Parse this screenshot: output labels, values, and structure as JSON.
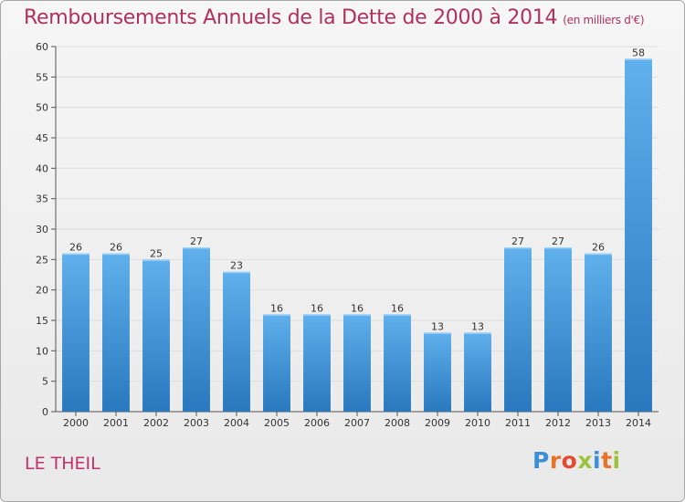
{
  "title": "Remboursements Annuels de la Dette de 2000 à 2014",
  "title_unit": "(en milliers d'€)",
  "commune": "LE THEIL",
  "logo": {
    "text": "Proxiti",
    "letter_colors": [
      "#3a8fd6",
      "#e8742a",
      "#e34a33",
      "#9bc43c",
      "#3a8fd6",
      "#e8742a",
      "#9bc43c"
    ]
  },
  "colors": {
    "bar": "#3d93db",
    "bar_light": "#5fb0ec",
    "bar_dark": "#2a78bd",
    "title": "#b0305e",
    "grid": "#dddddd"
  },
  "chart_data": {
    "type": "bar",
    "title": "Remboursements Annuels de la Dette de 2000 à 2014",
    "xlabel": "",
    "ylabel": "",
    "categories": [
      "2000",
      "2001",
      "2002",
      "2003",
      "2004",
      "2005",
      "2006",
      "2007",
      "2008",
      "2009",
      "2010",
      "2011",
      "2012",
      "2013",
      "2014"
    ],
    "values": [
      26,
      26,
      25,
      27,
      23,
      16,
      16,
      16,
      16,
      13,
      13,
      27,
      27,
      26,
      58
    ],
    "ylim": [
      0,
      60
    ],
    "yticks": [
      0,
      5,
      10,
      15,
      20,
      25,
      30,
      35,
      40,
      45,
      50,
      55,
      60
    ],
    "grid": true
  }
}
